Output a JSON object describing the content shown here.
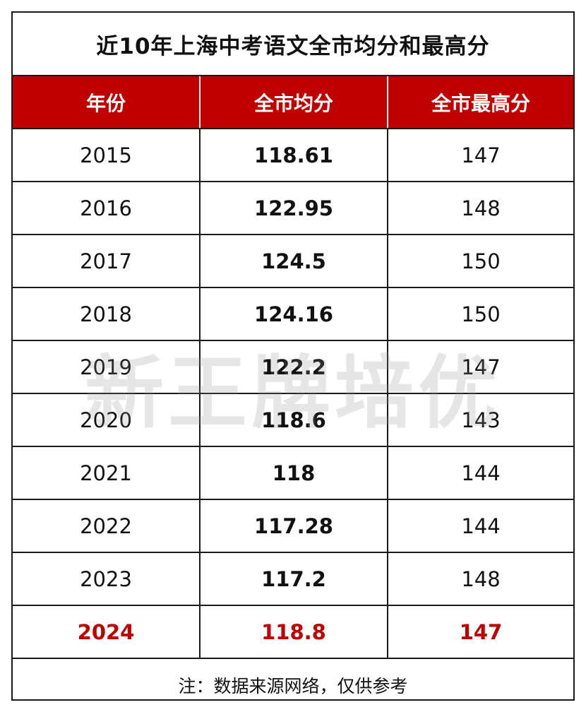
{
  "title": "近10年上海中考语文全市均分和最高分",
  "headers": [
    "年份",
    "全市均分",
    "全市最高分"
  ],
  "rows": [
    {
      "year": "2015",
      "avg": "118.61",
      "max": "147"
    },
    {
      "year": "2016",
      "avg": "122.95",
      "max": "148"
    },
    {
      "year": "2017",
      "avg": "124.5",
      "max": "150"
    },
    {
      "year": "2018",
      "avg": "124.16",
      "max": "150"
    },
    {
      "year": "2019",
      "avg": "122.2",
      "max": "147"
    },
    {
      "year": "2020",
      "avg": "118.6",
      "max": "143"
    },
    {
      "year": "2021",
      "avg": "118",
      "max": "144"
    },
    {
      "year": "2022",
      "avg": "117.28",
      "max": "144"
    },
    {
      "year": "2023",
      "avg": "117.2",
      "max": "148"
    },
    {
      "year": "2024",
      "avg": "118.8",
      "max": "147"
    }
  ],
  "footnote": "注：数据来源网络，仅供参考",
  "watermark": "新王牌培优",
  "colors": {
    "header_bg": "#c00000",
    "highlight_text": "#c00000",
    "border": "#1a1a1a"
  }
}
